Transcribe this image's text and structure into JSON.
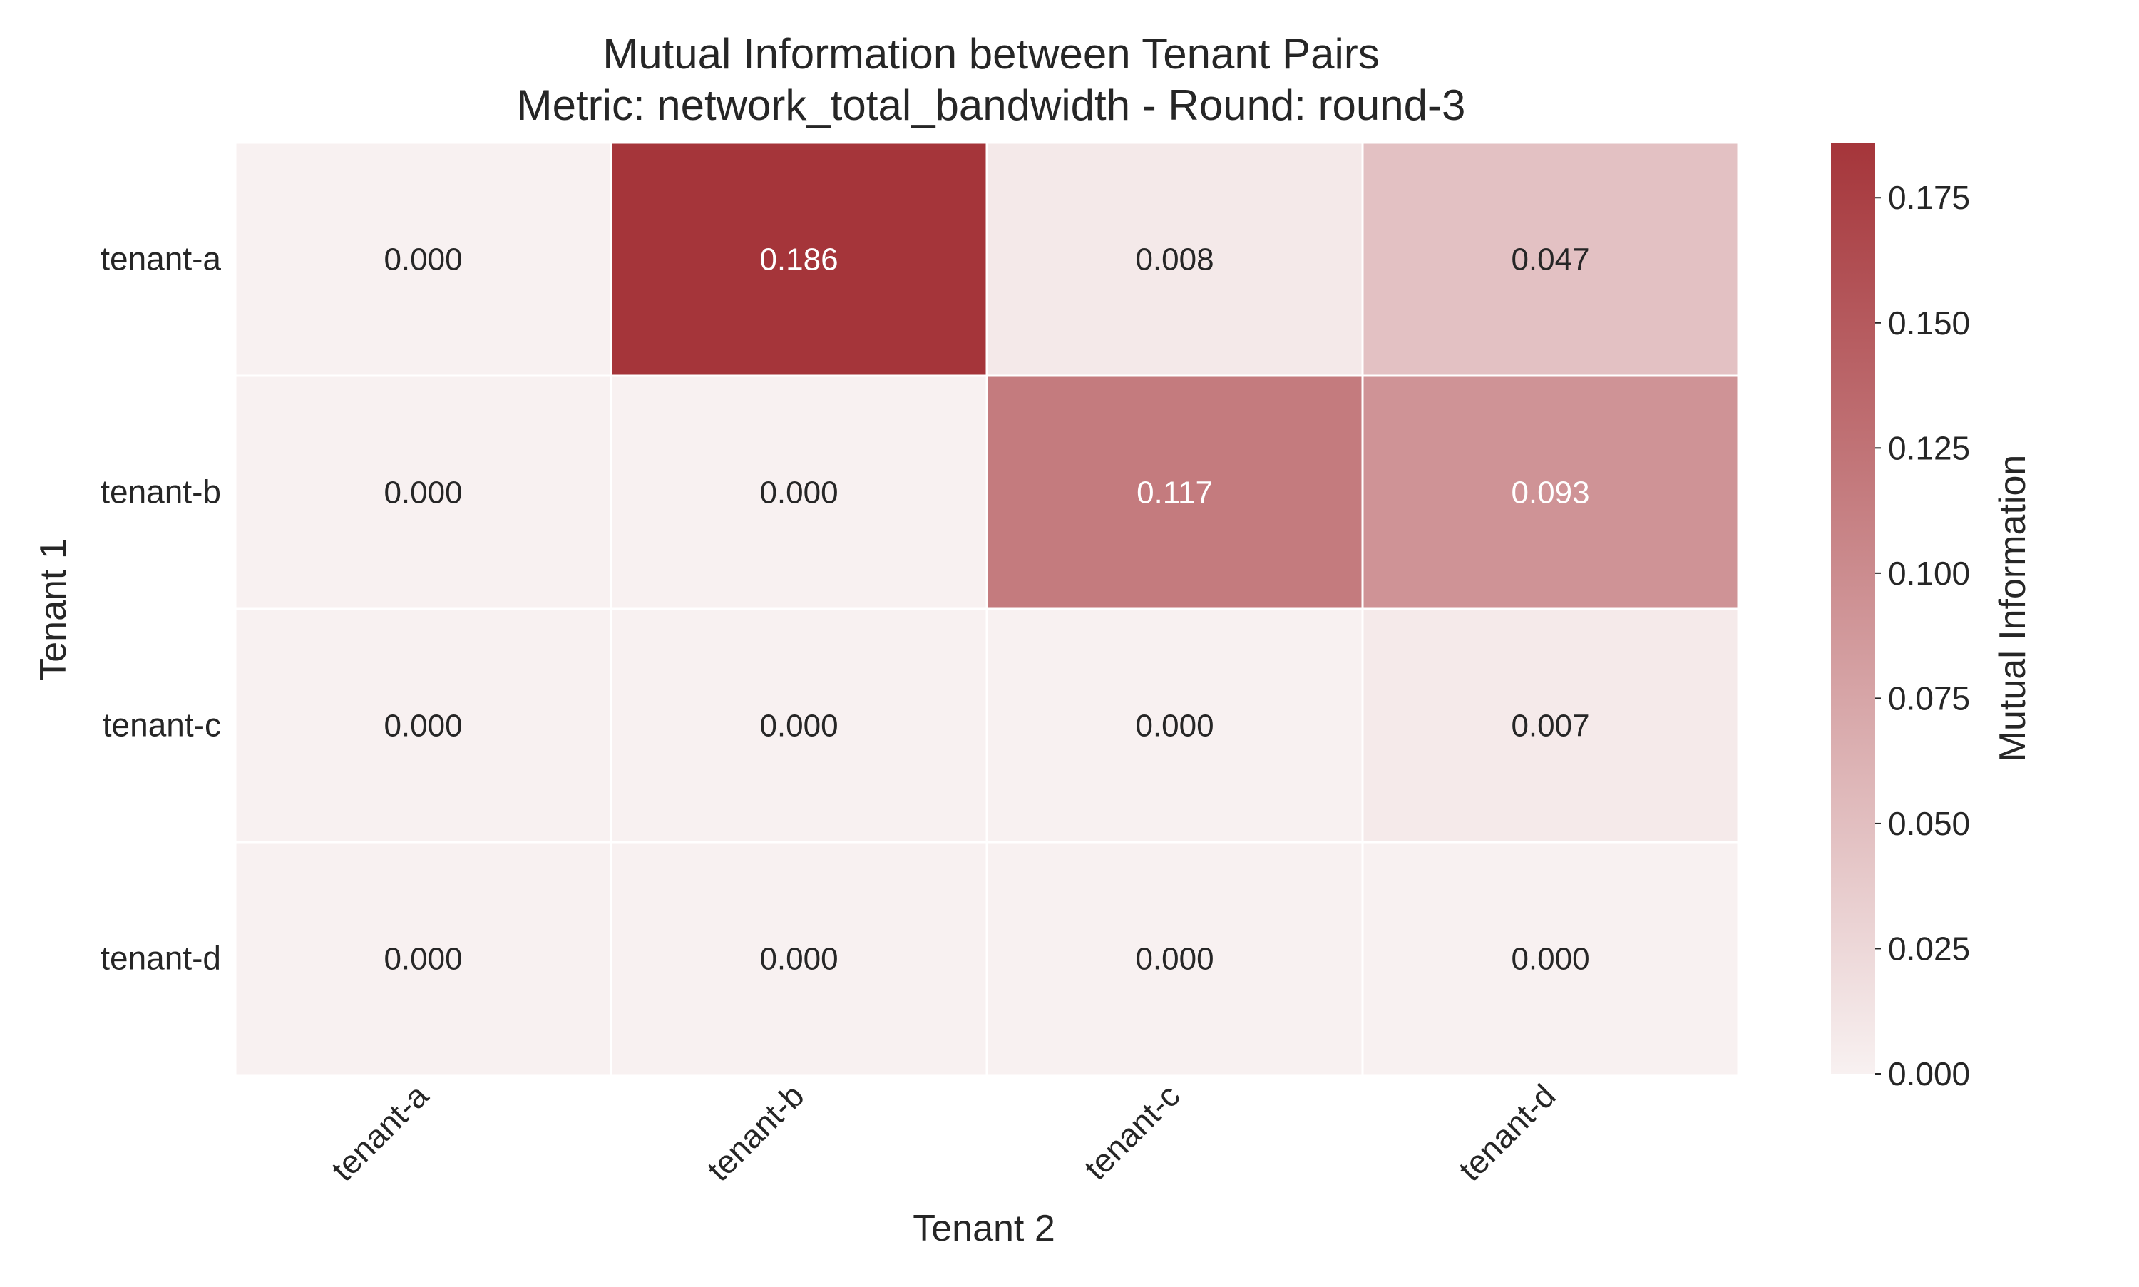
{
  "chart_data": {
    "type": "heatmap",
    "title": "Mutual Information between Tenant Pairs",
    "subtitle": "Metric: network_total_bandwidth - Round: round-3",
    "xlabel": "Tenant 2",
    "ylabel": "Tenant 1",
    "x_categories": [
      "tenant-a",
      "tenant-b",
      "tenant-c",
      "tenant-d"
    ],
    "y_categories": [
      "tenant-a",
      "tenant-b",
      "tenant-c",
      "tenant-d"
    ],
    "values": [
      [
        0.0,
        0.186,
        0.008,
        0.047
      ],
      [
        0.0,
        0.0,
        0.117,
        0.093
      ],
      [
        0.0,
        0.0,
        0.0,
        0.007
      ],
      [
        0.0,
        0.0,
        0.0,
        0.0
      ]
    ],
    "value_format": "0.000",
    "colorbar": {
      "label": "Mutual Information",
      "range": [
        0.0,
        0.186
      ],
      "ticks": [
        0.0,
        0.025,
        0.05,
        0.075,
        0.1,
        0.125,
        0.15,
        0.175
      ],
      "tick_labels": [
        "0.000",
        "0.025",
        "0.050",
        "0.075",
        "0.100",
        "0.125",
        "0.150",
        "0.175"
      ],
      "color_low": "#f8f1f1",
      "color_high": "#a5353a"
    },
    "grid": false
  }
}
